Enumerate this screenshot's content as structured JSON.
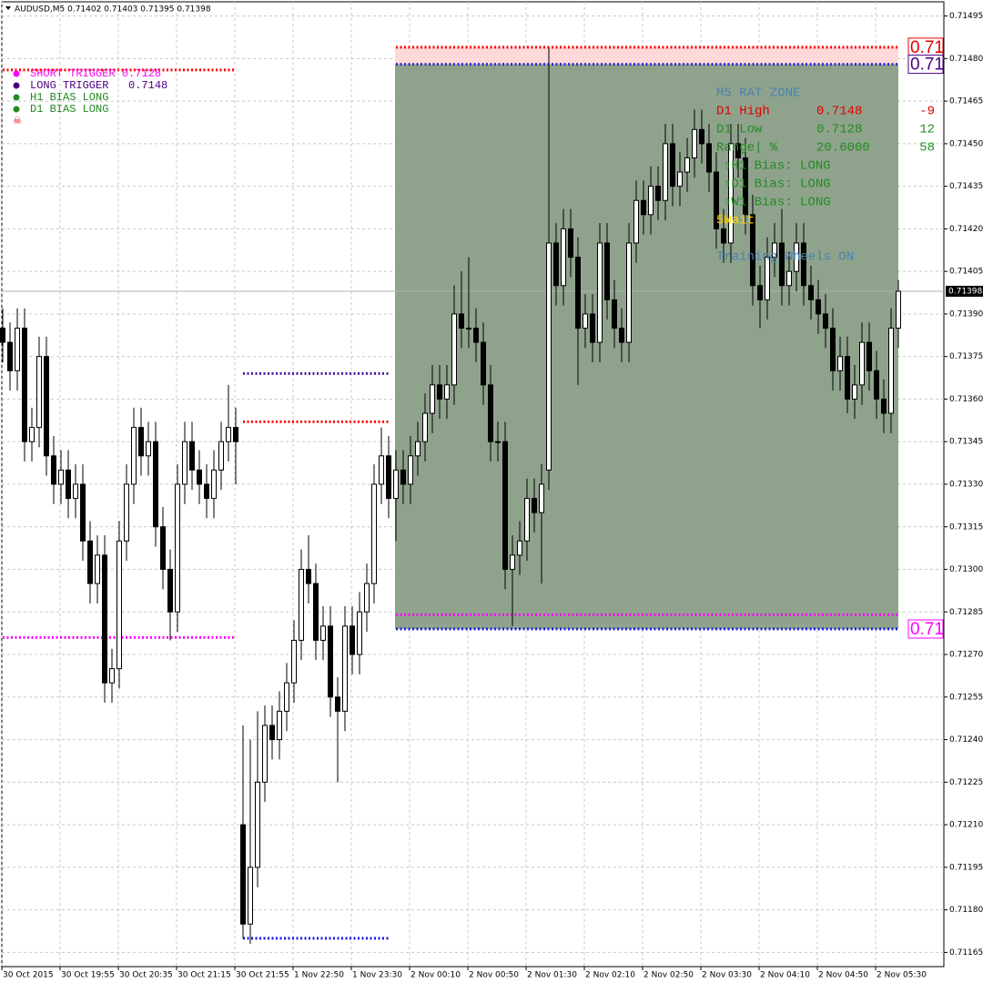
{
  "chart_data": {
    "type": "candlestick",
    "title": "AUDUSD,M5  0.71402 0.71403 0.71395 0.71398",
    "categories": [
      "30 Oct 2015",
      null,
      null,
      null,
      null,
      null,
      null,
      null,
      "30 Oct 19:55",
      null,
      null,
      null,
      null,
      null,
      null,
      null,
      "30 Oct 20:35",
      null,
      null,
      null,
      null,
      null,
      null,
      null,
      "30 Oct 21:15",
      null,
      null,
      null,
      null,
      null,
      null,
      null,
      "30 Oct 21:55",
      null,
      null,
      null,
      null,
      null,
      null,
      null,
      "1 Nov 22:50",
      null,
      null,
      null,
      null,
      null,
      null,
      null,
      "1 Nov 23:30",
      null,
      null,
      null,
      null,
      null,
      null,
      null,
      "2 Nov 00:10",
      null,
      null,
      null,
      null,
      null,
      null,
      null,
      "2 Nov 00:50",
      null,
      null,
      null,
      null,
      null,
      null,
      null,
      "2 Nov 01:30",
      null,
      null,
      null,
      null,
      null,
      null,
      null,
      "2 Nov 02:10",
      null,
      null,
      null,
      null,
      null,
      null,
      null,
      "2 Nov 02:50",
      null,
      null,
      null,
      null,
      null,
      null,
      null,
      "2 Nov 03:30",
      null,
      null,
      null,
      null,
      null,
      null,
      null,
      "2 Nov 04:10",
      null,
      null,
      null,
      null,
      null,
      null,
      null,
      "2 Nov 04:50",
      null,
      null,
      null,
      null,
      null,
      null,
      null,
      "2 Nov 05:30",
      null,
      null,
      null
    ],
    "open": [
      0.71385,
      0.7138,
      0.7137,
      0.71385,
      0.71345,
      0.7135,
      0.71375,
      0.7134,
      0.7133,
      0.71335,
      0.71325,
      0.7133,
      0.7131,
      0.71295,
      0.71305,
      0.7126,
      0.71265,
      0.7131,
      0.7133,
      0.7135,
      0.7134,
      0.71345,
      0.71315,
      0.713,
      0.71285,
      0.7133,
      0.71345,
      0.71335,
      0.7133,
      0.71325,
      0.71335,
      0.71345,
      0.7135,
      0.7121,
      0.71175,
      0.71195,
      0.71225,
      0.71245,
      0.7124,
      0.7125,
      0.7126,
      0.71275,
      0.713,
      0.71295,
      0.71275,
      0.7128,
      0.71255,
      0.7125,
      0.7128,
      0.7127,
      0.71285,
      0.71295,
      0.7133,
      0.7134,
      0.71325,
      0.71335,
      0.7133,
      0.7134,
      0.71345,
      0.71355,
      0.71365,
      0.7136,
      0.71365,
      0.7139,
      0.71385,
      0.71385,
      0.7138,
      0.71365,
      0.71345,
      0.71345,
      0.713,
      0.71305,
      0.7131,
      0.71325,
      0.7132,
      0.71335,
      0.71415,
      0.714,
      0.7142,
      0.7141,
      0.71385,
      0.7139,
      0.7138,
      0.71415,
      0.71395,
      0.71385,
      0.7138,
      0.71415,
      0.7143,
      0.71425,
      0.71435,
      0.7143,
      0.7145,
      0.71435,
      0.7144,
      0.71445,
      0.71455,
      0.7145,
      0.7144,
      0.7142,
      0.71415,
      0.7145,
      0.71445,
      0.71425,
      0.714,
      0.71395,
      0.7141,
      0.71415,
      0.714,
      0.71405,
      0.71415,
      0.714,
      0.71395,
      0.7139,
      0.71385,
      0.7137,
      0.71375,
      0.7136,
      0.71365,
      0.7138,
      0.7137,
      0.7136,
      0.71355,
      0.71385
    ],
    "high": [
      0.71392,
      0.71387,
      0.71392,
      0.71392,
      0.71357,
      0.71382,
      0.71382,
      0.71347,
      0.71342,
      0.71342,
      0.71337,
      0.71337,
      0.71317,
      0.71312,
      0.71312,
      0.71272,
      0.71317,
      0.71337,
      0.71357,
      0.71357,
      0.71352,
      0.71352,
      0.71322,
      0.71307,
      0.71337,
      0.71352,
      0.71352,
      0.71342,
      0.71337,
      0.71342,
      0.71352,
      0.71365,
      0.71357,
      0.71245,
      0.7124,
      0.7125,
      0.71252,
      0.71252,
      0.71257,
      0.71267,
      0.71282,
      0.71307,
      0.71312,
      0.71302,
      0.71287,
      0.71287,
      0.71262,
      0.71287,
      0.71287,
      0.71292,
      0.71302,
      0.71337,
      0.7135,
      0.71347,
      0.71342,
      0.71342,
      0.71347,
      0.71352,
      0.71362,
      0.71372,
      0.71372,
      0.71372,
      0.714,
      0.71405,
      0.7141,
      0.71392,
      0.71387,
      0.71372,
      0.71352,
      0.71352,
      0.71312,
      0.71317,
      0.71332,
      0.71332,
      0.71337,
      0.71484,
      0.71422,
      0.71427,
      0.71427,
      0.71417,
      0.71397,
      0.71397,
      0.71422,
      0.71422,
      0.71402,
      0.71392,
      0.71422,
      0.71437,
      0.71437,
      0.71442,
      0.71442,
      0.71457,
      0.71457,
      0.71447,
      0.71452,
      0.71462,
      0.71462,
      0.71457,
      0.71447,
      0.71427,
      0.71457,
      0.71457,
      0.71452,
      0.71432,
      0.71407,
      0.71417,
      0.71422,
      0.71427,
      0.71412,
      0.71422,
      0.71422,
      0.71407,
      0.71402,
      0.71397,
      0.71392,
      0.71382,
      0.71382,
      0.71372,
      0.71387,
      0.71387,
      0.71377,
      0.71367,
      0.71392,
      0.71402
    ],
    "low": [
      0.71373,
      0.71363,
      0.71363,
      0.71338,
      0.71338,
      0.71343,
      0.71333,
      0.71323,
      0.71323,
      0.71318,
      0.71318,
      0.71303,
      0.71288,
      0.71288,
      0.71253,
      0.71253,
      0.71258,
      0.71303,
      0.71323,
      0.71333,
      0.71333,
      0.71308,
      0.71293,
      0.71275,
      0.71278,
      0.71323,
      0.71328,
      0.71323,
      0.71318,
      0.71318,
      0.71328,
      0.71338,
      0.7133,
      0.7117,
      0.71168,
      0.71188,
      0.71218,
      0.71233,
      0.71233,
      0.71243,
      0.71253,
      0.71268,
      0.71288,
      0.71268,
      0.71268,
      0.71248,
      0.71225,
      0.71243,
      0.71263,
      0.71263,
      0.71278,
      0.71288,
      0.71323,
      0.71318,
      0.7131,
      0.71323,
      0.71323,
      0.71333,
      0.71338,
      0.71348,
      0.71353,
      0.71353,
      0.71358,
      0.71378,
      0.71378,
      0.71373,
      0.71358,
      0.71338,
      0.71338,
      0.71293,
      0.7128,
      0.71298,
      0.71303,
      0.71313,
      0.71295,
      0.71328,
      0.71393,
      0.71393,
      0.71403,
      0.71365,
      0.71378,
      0.71373,
      0.71373,
      0.71388,
      0.71378,
      0.71373,
      0.71373,
      0.71408,
      0.71418,
      0.71418,
      0.71423,
      0.71423,
      0.71428,
      0.71428,
      0.71433,
      0.71438,
      0.71443,
      0.71433,
      0.71413,
      0.71408,
      0.71408,
      0.71438,
      0.71418,
      0.71393,
      0.71385,
      0.71388,
      0.71403,
      0.71393,
      0.71393,
      0.71398,
      0.71393,
      0.71388,
      0.71383,
      0.71378,
      0.71363,
      0.71363,
      0.71355,
      0.71353,
      0.71358,
      0.71363,
      0.71353,
      0.71348,
      0.71348,
      0.71378
    ],
    "close": [
      0.7138,
      0.7137,
      0.71385,
      0.71345,
      0.7135,
      0.71375,
      0.7134,
      0.7133,
      0.71335,
      0.71325,
      0.7133,
      0.7131,
      0.71295,
      0.71305,
      0.7126,
      0.71265,
      0.7131,
      0.7133,
      0.7135,
      0.7134,
      0.71345,
      0.71315,
      0.713,
      0.71285,
      0.7133,
      0.71345,
      0.71335,
      0.7133,
      0.71325,
      0.71335,
      0.71345,
      0.7135,
      0.71345,
      0.71175,
      0.71195,
      0.71225,
      0.71245,
      0.7124,
      0.7125,
      0.7126,
      0.71275,
      0.713,
      0.71295,
      0.71275,
      0.7128,
      0.71255,
      0.7125,
      0.7128,
      0.7127,
      0.71285,
      0.71295,
      0.7133,
      0.7134,
      0.71325,
      0.71335,
      0.7133,
      0.7134,
      0.71345,
      0.71355,
      0.71365,
      0.7136,
      0.71365,
      0.7139,
      0.71385,
      0.71385,
      0.7138,
      0.71365,
      0.71345,
      0.71345,
      0.713,
      0.71305,
      0.7131,
      0.71325,
      0.7132,
      0.7133,
      0.71415,
      0.714,
      0.7142,
      0.7141,
      0.71385,
      0.7139,
      0.7138,
      0.71415,
      0.71395,
      0.71385,
      0.7138,
      0.71415,
      0.7143,
      0.71425,
      0.71435,
      0.7143,
      0.7145,
      0.71435,
      0.7144,
      0.71445,
      0.71455,
      0.7145,
      0.7144,
      0.7142,
      0.71415,
      0.7145,
      0.71445,
      0.71425,
      0.714,
      0.71395,
      0.7141,
      0.71415,
      0.714,
      0.71405,
      0.71415,
      0.714,
      0.71395,
      0.7139,
      0.71385,
      0.7137,
      0.71375,
      0.7136,
      0.71365,
      0.7138,
      0.7137,
      0.7136,
      0.71355,
      0.71385,
      0.71398
    ],
    "ylim": [
      0.7116,
      0.715
    ],
    "yticks": [
      0.71495,
      {
        "value": 0.7148,
        "label": "0.71480"
      },
      0.71465,
      {
        "value": 0.7145,
        "label": "0.71450"
      },
      0.71435,
      {
        "value": 0.7142,
        "label": "0.71420"
      },
      0.71405,
      {
        "value": 0.7139,
        "label": "0.71390"
      },
      0.71375,
      {
        "value": 0.7136,
        "label": "0.71360"
      },
      0.71345,
      {
        "value": 0.7133,
        "label": "0.71330"
      },
      0.71315,
      {
        "value": 0.713,
        "label": "0.71300"
      },
      0.71285,
      {
        "value": 0.7127,
        "label": "0.71270"
      },
      0.71255,
      {
        "value": 0.7124,
        "label": "0.71240"
      },
      0.71225,
      {
        "value": 0.7121,
        "label": "0.71210"
      },
      0.71195,
      {
        "value": 0.7118,
        "label": "0.71180"
      },
      0.71165
    ],
    "grid": true,
    "current_price": 0.71398,
    "zone": {
      "top": 0.71478,
      "bottom": 0.71279,
      "x_range": [
        54,
        123
      ],
      "color": "#8fa38c"
    },
    "levels": [
      {
        "value": 0.71484,
        "color": "#ff0000",
        "x_range": [
          54,
          123
        ]
      },
      {
        "value": 0.71478,
        "color": "#2a2ad0",
        "x_range": [
          54,
          123
        ]
      },
      {
        "value": 0.71284,
        "color": "#ff00ff",
        "x_range": [
          54,
          123
        ]
      },
      {
        "value": 0.71279,
        "color": "#1a1ae0",
        "x_range": [
          54,
          123
        ]
      },
      {
        "value": 0.71369,
        "color": "#4b1a9a",
        "x_range": [
          33,
          53
        ]
      },
      {
        "value": 0.71352,
        "color": "#ff0000",
        "x_range": [
          33,
          53
        ]
      },
      {
        "value": 0.7117,
        "color": "#1a1ae0",
        "x_range": [
          33,
          53
        ]
      },
      {
        "value": 0.71276,
        "color": "#ff00ff",
        "x_range": [
          0,
          32
        ]
      },
      {
        "value": 0.71476,
        "color": "#ff0000",
        "x_range": [
          0,
          32
        ]
      }
    ],
    "right_labels": [
      {
        "text": "0.71",
        "value": 0.71484,
        "color": "#e00000"
      },
      {
        "text": "0.71",
        "value": 0.71478,
        "color": "#4b0082"
      },
      {
        "text": "0.71",
        "value": 0.71279,
        "color": "#ff00ff"
      }
    ],
    "legend_text": [
      {
        "text": "SHORT TRIGGER 0.7128",
        "color": "#ff00ff"
      },
      {
        "text": "LONG TRIGGER   0.7148",
        "color": "#4b0082"
      },
      {
        "text": "H1 BIAS LONG",
        "color": "#228b22"
      },
      {
        "text": "D1 BIAS LONG",
        "color": "#228b22"
      }
    ],
    "panel": [
      {
        "cells": [
          "M5 RAT ZONE"
        ],
        "color": "#4682b4"
      },
      {
        "cells": [
          "D1 High",
          "0.7148",
          "-9"
        ],
        "color": "#e00000"
      },
      {
        "cells": [
          "D1 Low",
          "0.7128",
          "12"
        ],
        "color": "#228b22"
      },
      {
        "cells": [
          "Range| %",
          "20.6000",
          "58"
        ],
        "color": "#228b22"
      },
      {
        "cells": [
          "⇧H1 Bias: LONG"
        ],
        "color": "#228b22"
      },
      {
        "cells": [
          "⇧D1 Bias: LONG"
        ],
        "color": "#228b22"
      },
      {
        "cells": [
          "⇧W1 Bias: LONG"
        ],
        "color": "#228b22"
      },
      {
        "cells": [
          "5Wait"
        ],
        "color": "#ffd700"
      },
      {
        "cells": [],
        "color": "#4682b4"
      },
      {
        "cells": [
          "Training Wheels ON"
        ],
        "color": "#4682b4"
      }
    ]
  }
}
